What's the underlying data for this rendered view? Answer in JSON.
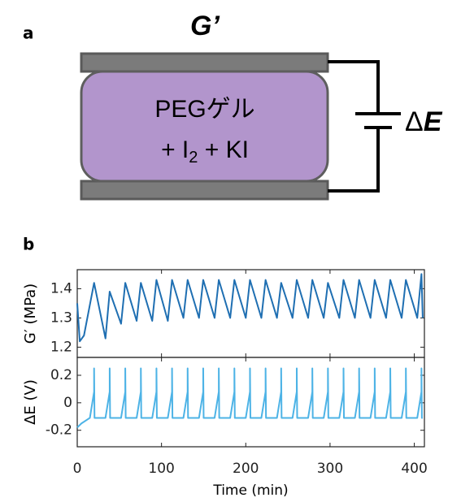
{
  "diagram": {
    "panel_label": "a",
    "top_label": "G’",
    "gel_line1": "PEGゲル",
    "gel_line2_a": "+ I",
    "gel_line2_sub": "2",
    "gel_line2_b": " + KI",
    "voltage_delta": "Δ",
    "voltage_symbol": "E"
  },
  "panel_label_b": "b",
  "chart_data": [
    {
      "type": "line",
      "ylabel": "G′ (MPa)",
      "xlim": [
        0,
        412
      ],
      "ylim": [
        1.165,
        1.465
      ],
      "yticks": [
        1.2,
        1.3,
        1.4
      ],
      "x": [
        0,
        3,
        8,
        20,
        33.5,
        38.5,
        52,
        57,
        70.5,
        75.5,
        89,
        94,
        107.5,
        112.5,
        126,
        131,
        144.5,
        149.5,
        163,
        168,
        181.5,
        186.5,
        200,
        205,
        218.5,
        223.5,
        237,
        242,
        255.5,
        260.5,
        274,
        279,
        292.5,
        297.5,
        311,
        316,
        329.5,
        334.5,
        348,
        353,
        366.5,
        371.5,
        385,
        390,
        403.5,
        408.5,
        410
      ],
      "series": [
        {
          "color": "#1f6fb2",
          "values": [
            1.35,
            1.22,
            1.24,
            1.42,
            1.23,
            1.39,
            1.28,
            1.42,
            1.29,
            1.42,
            1.29,
            1.43,
            1.29,
            1.43,
            1.3,
            1.43,
            1.3,
            1.43,
            1.3,
            1.43,
            1.3,
            1.43,
            1.3,
            1.43,
            1.3,
            1.43,
            1.3,
            1.42,
            1.3,
            1.43,
            1.3,
            1.43,
            1.3,
            1.42,
            1.3,
            1.43,
            1.3,
            1.43,
            1.3,
            1.43,
            1.3,
            1.43,
            1.3,
            1.43,
            1.3,
            1.45,
            1.3
          ]
        }
      ]
    },
    {
      "type": "line",
      "ylabel": "ΔE (V)",
      "xlabel": "Time (min)",
      "xlim": [
        0,
        412
      ],
      "ylim": [
        -0.32,
        0.33
      ],
      "yticks": [
        -0.2,
        0,
        0.2
      ],
      "xticks": [
        0,
        100,
        200,
        300,
        400
      ],
      "x": [
        0,
        5,
        15,
        20,
        20,
        20.5,
        33.5,
        38.5,
        38.5,
        39,
        52,
        57,
        57,
        57.5,
        70.5,
        75.5,
        75.5,
        76,
        89,
        94,
        94,
        94.5,
        107.5,
        112.5,
        112.5,
        113,
        126,
        131,
        131,
        131.5,
        144.5,
        149.5,
        149.5,
        150,
        163,
        168,
        168,
        168.5,
        181.5,
        186.5,
        186.5,
        187,
        200,
        205,
        205,
        205.5,
        218.5,
        223.5,
        223.5,
        224,
        237,
        242,
        242,
        242.5,
        255.5,
        260.5,
        260.5,
        261,
        274,
        279,
        279,
        279.5,
        292.5,
        297.5,
        297.5,
        298,
        311,
        316,
        316,
        316.5,
        329.5,
        334.5,
        334.5,
        335,
        348,
        353,
        353,
        353.5,
        366.5,
        371.5,
        371.5,
        372,
        385,
        390,
        390,
        390.5,
        403.5,
        408.5,
        408.5,
        409,
        410
      ],
      "series": [
        {
          "color": "#4db3e6",
          "values": [
            -0.18,
            -0.15,
            -0.11,
            0.08,
            0.25,
            -0.11,
            -0.11,
            0.08,
            0.25,
            -0.11,
            -0.11,
            0.08,
            0.25,
            -0.11,
            -0.11,
            0.08,
            0.25,
            -0.11,
            -0.11,
            0.08,
            0.25,
            -0.11,
            -0.11,
            0.08,
            0.25,
            -0.11,
            -0.11,
            0.08,
            0.25,
            -0.11,
            -0.11,
            0.08,
            0.25,
            -0.11,
            -0.11,
            0.08,
            0.25,
            -0.11,
            -0.11,
            0.08,
            0.25,
            -0.11,
            -0.11,
            0.08,
            0.25,
            -0.11,
            -0.11,
            0.08,
            0.25,
            -0.11,
            -0.11,
            0.08,
            0.25,
            -0.11,
            -0.11,
            0.08,
            0.25,
            -0.11,
            -0.11,
            0.08,
            0.25,
            -0.11,
            -0.11,
            0.08,
            0.25,
            -0.11,
            -0.11,
            0.08,
            0.25,
            -0.11,
            -0.11,
            0.08,
            0.25,
            -0.11,
            -0.11,
            0.08,
            0.25,
            -0.11,
            -0.11,
            0.08,
            0.25,
            -0.11,
            -0.11,
            0.08,
            0.25,
            -0.11,
            -0.11,
            0.08,
            0.25,
            -0.11,
            -0.11
          ]
        }
      ]
    }
  ]
}
